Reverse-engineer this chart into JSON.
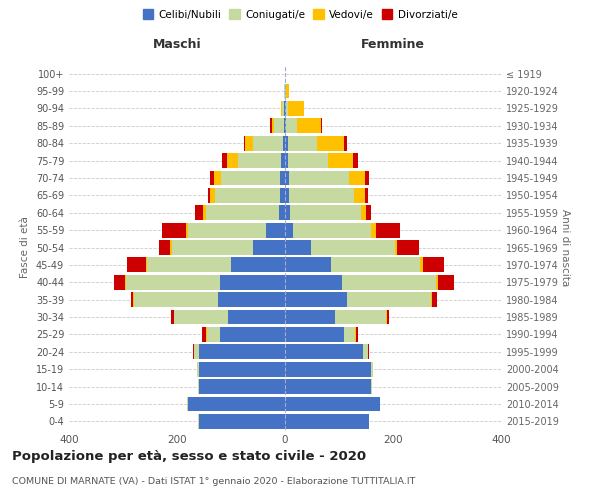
{
  "age_groups": [
    "0-4",
    "5-9",
    "10-14",
    "15-19",
    "20-24",
    "25-29",
    "30-34",
    "35-39",
    "40-44",
    "45-49",
    "50-54",
    "55-59",
    "60-64",
    "65-69",
    "70-74",
    "75-79",
    "80-84",
    "85-89",
    "90-94",
    "95-99",
    "100+"
  ],
  "birth_years": [
    "2015-2019",
    "2010-2014",
    "2005-2009",
    "2000-2004",
    "1995-1999",
    "1990-1994",
    "1985-1989",
    "1980-1984",
    "1975-1979",
    "1970-1974",
    "1965-1969",
    "1960-1964",
    "1955-1959",
    "1950-1954",
    "1945-1949",
    "1940-1944",
    "1935-1939",
    "1930-1934",
    "1925-1929",
    "1920-1924",
    "≤ 1919"
  ],
  "maschi": {
    "celibi": [
      160,
      180,
      160,
      160,
      160,
      120,
      105,
      125,
      120,
      100,
      60,
      35,
      12,
      10,
      9,
      7,
      4,
      2,
      1,
      0,
      0
    ],
    "coniugati": [
      1,
      2,
      2,
      3,
      8,
      25,
      100,
      155,
      175,
      155,
      150,
      145,
      135,
      120,
      110,
      80,
      55,
      18,
      5,
      1,
      0
    ],
    "vedovi": [
      0,
      0,
      0,
      0,
      1,
      1,
      1,
      1,
      2,
      3,
      3,
      3,
      5,
      8,
      12,
      20,
      15,
      5,
      2,
      0,
      0
    ],
    "divorziati": [
      0,
      0,
      0,
      0,
      2,
      8,
      5,
      5,
      20,
      35,
      20,
      45,
      15,
      5,
      8,
      10,
      2,
      2,
      0,
      0,
      0
    ]
  },
  "femmine": {
    "nubili": [
      155,
      175,
      160,
      160,
      145,
      110,
      92,
      115,
      105,
      85,
      48,
      15,
      10,
      8,
      8,
      5,
      5,
      2,
      1,
      0,
      0
    ],
    "coniugate": [
      1,
      1,
      2,
      3,
      8,
      20,
      95,
      155,
      175,
      165,
      155,
      145,
      130,
      120,
      110,
      75,
      55,
      20,
      5,
      2,
      0
    ],
    "vedove": [
      0,
      0,
      0,
      0,
      0,
      1,
      1,
      2,
      3,
      5,
      5,
      8,
      10,
      20,
      30,
      45,
      50,
      45,
      30,
      5,
      0
    ],
    "divorziate": [
      0,
      0,
      0,
      0,
      2,
      5,
      5,
      10,
      30,
      40,
      40,
      45,
      10,
      5,
      8,
      10,
      5,
      2,
      0,
      0,
      0
    ]
  },
  "colors": {
    "celibi": "#4472c4",
    "coniugati": "#c5d9a0",
    "vedovi": "#ffc000",
    "divorziati": "#cc0000"
  },
  "xlim": 400,
  "title": "Popolazione per età, sesso e stato civile - 2020",
  "subtitle": "COMUNE DI MARNATE (VA) - Dati ISTAT 1° gennaio 2020 - Elaborazione TUTTITALIA.IT",
  "ylabel_left": "Fasce di età",
  "ylabel_right": "Anni di nascita",
  "xlabel_left": "Maschi",
  "xlabel_right": "Femmine",
  "background_color": "#ffffff",
  "grid_color": "#cccccc"
}
